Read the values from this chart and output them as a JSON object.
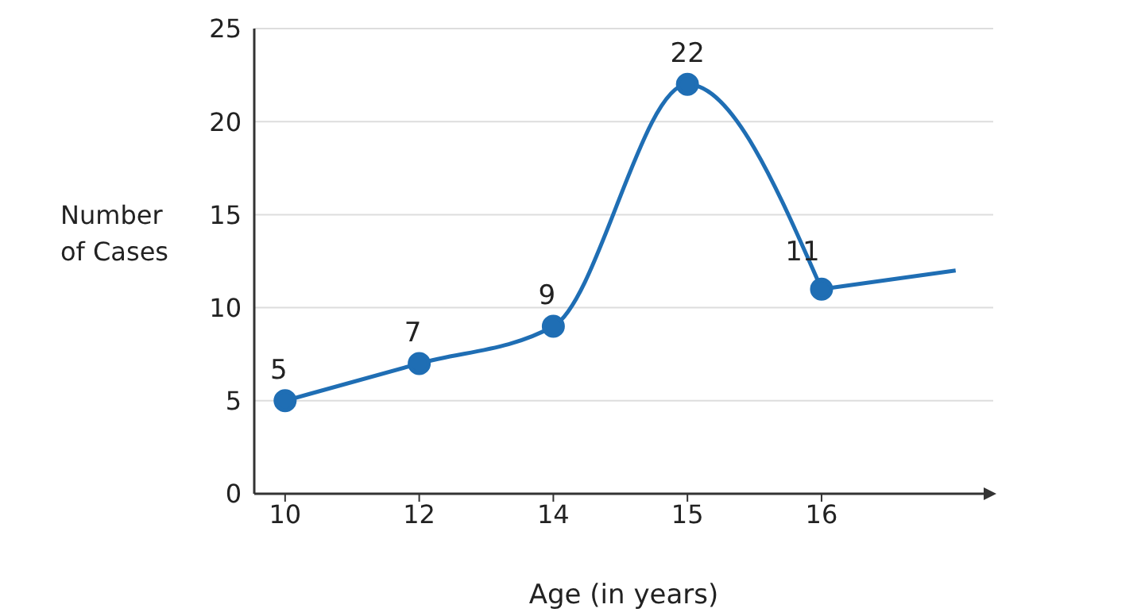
{
  "chart_data": {
    "type": "line",
    "xlabel": "Age (in years)",
    "ylabel": "Number of Cases",
    "categories": [
      "10",
      "12",
      "14",
      "15",
      "16",
      null
    ],
    "ylim": [
      0,
      25
    ],
    "yticks": [
      0,
      5,
      10,
      15,
      20,
      25
    ],
    "grid": "y",
    "series": [
      {
        "color": "#1f6eb4",
        "values": [
          5,
          7,
          9,
          22,
          11,
          null
        ],
        "value_labels": [
          "5",
          "7",
          "9",
          "22",
          "11",
          null
        ],
        "marker": "circle"
      },
      {
        "color": "#1f6eb4",
        "values": [
          null,
          null,
          null,
          null,
          11,
          12
        ]
      }
    ]
  }
}
